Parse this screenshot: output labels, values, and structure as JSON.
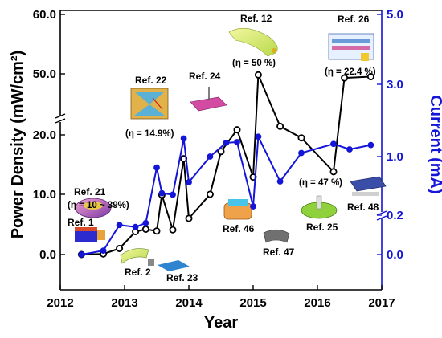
{
  "chart_data": {
    "type": "line",
    "xlabel": "Year",
    "ylabel": "Power Density (mW/cm²)",
    "y2label": "Current (mA)",
    "xlim": [
      2012,
      2017
    ],
    "x_ticks": [
      "2012",
      "2013",
      "2014",
      "2015",
      "2016",
      "2017"
    ],
    "y_ticks_left": [
      "0.0",
      "10.0",
      "20.0",
      "50.0",
      "60.0"
    ],
    "y_ticks_right": [
      "0.0",
      "0.2",
      "1.0",
      "3.0",
      "5.0"
    ],
    "axis_break": "broken axis between 20 and 50 (left) / 1.0 and 3.0 (right)",
    "colors": {
      "power": "#000000",
      "current": "#1515d8"
    },
    "series": [
      {
        "axis": "left",
        "marker": "open-circle",
        "points": [
          {
            "x": 2012.33,
            "y": 0.0
          },
          {
            "x": 2012.67,
            "y": 0.1
          },
          {
            "x": 2012.92,
            "y": 1.0
          },
          {
            "x": 2013.17,
            "y": 3.8
          },
          {
            "x": 2013.33,
            "y": 4.2
          },
          {
            "x": 2013.5,
            "y": 3.9
          },
          {
            "x": 2013.58,
            "y": 9.9
          },
          {
            "x": 2013.75,
            "y": 4.1
          },
          {
            "x": 2013.92,
            "y": 16.0
          },
          {
            "x": 2014.0,
            "y": 6.0
          },
          {
            "x": 2014.33,
            "y": 10.0
          },
          {
            "x": 2014.5,
            "y": 17.2
          },
          {
            "x": 2014.75,
            "y": 22.5
          },
          {
            "x": 2015.0,
            "y": 12.9
          },
          {
            "x": 2015.08,
            "y": 49.5
          },
          {
            "x": 2015.42,
            "y": 24.2
          },
          {
            "x": 2015.75,
            "y": 19.5
          },
          {
            "x": 2016.25,
            "y": 13.8
          },
          {
            "x": 2016.42,
            "y": 48.0
          },
          {
            "x": 2016.83,
            "y": 48.6
          }
        ]
      },
      {
        "axis": "right",
        "marker": "filled-circle",
        "points": [
          {
            "x": 2012.33,
            "y": 0.0
          },
          {
            "x": 2012.67,
            "y": 0.02
          },
          {
            "x": 2012.92,
            "y": 0.15
          },
          {
            "x": 2013.17,
            "y": 0.14
          },
          {
            "x": 2013.33,
            "y": 0.16
          },
          {
            "x": 2013.5,
            "y": 0.85
          },
          {
            "x": 2013.58,
            "y": 0.5
          },
          {
            "x": 2013.75,
            "y": 0.48
          },
          {
            "x": 2013.92,
            "y": 1.5
          },
          {
            "x": 2014.0,
            "y": 0.65
          },
          {
            "x": 2014.33,
            "y": 1.0
          },
          {
            "x": 2014.58,
            "y": 1.38
          },
          {
            "x": 2014.75,
            "y": 1.4
          },
          {
            "x": 2015.0,
            "y": 0.32
          },
          {
            "x": 2015.08,
            "y": 1.55
          },
          {
            "x": 2015.42,
            "y": 0.66
          },
          {
            "x": 2015.75,
            "y": 1.1
          },
          {
            "x": 2016.25,
            "y": 1.35
          },
          {
            "x": 2016.5,
            "y": 1.2
          },
          {
            "x": 2016.83,
            "y": 1.32
          }
        ]
      }
    ],
    "annotations": {
      "refs": [
        "Ref. 1",
        "Ref. 2",
        "Ref. 21",
        "Ref. 22",
        "Ref. 23",
        "Ref. 24",
        "Ref. 12",
        "Ref. 46",
        "Ref. 47",
        "Ref. 25",
        "Ref. 26",
        "Ref. 48"
      ],
      "efficiencies": [
        "(η = 10 ~ 39%)",
        "(η = 14.9%)",
        "(η = 50 %)",
        "(η = 47 %)",
        "(η = 22.4 %)"
      ]
    },
    "grid": false,
    "legend": "none"
  }
}
